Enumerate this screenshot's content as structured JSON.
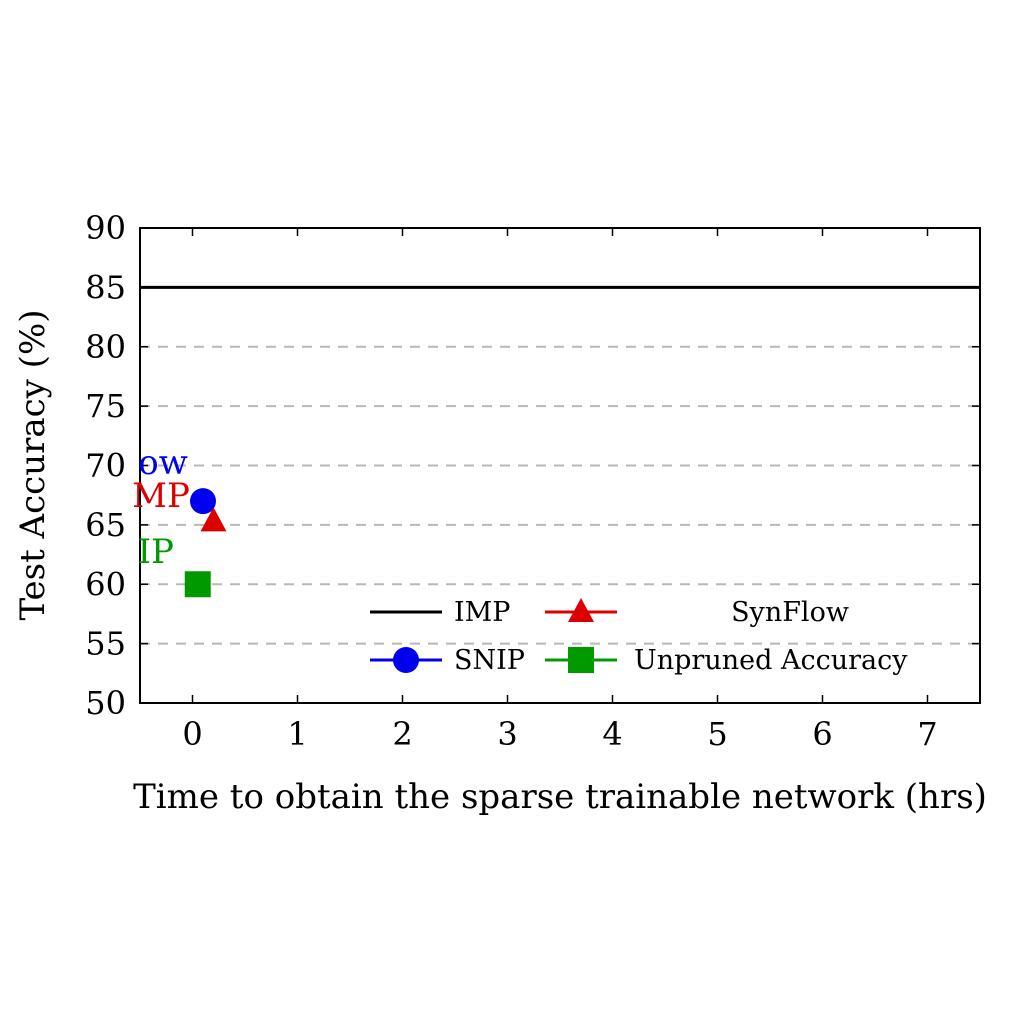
{
  "chart_data": {
    "type": "scatter",
    "xlabel": "Time to obtain the sparse trainable network (hrs)",
    "ylabel": "Test Accuracy (%)",
    "xlim": [
      -0.5,
      7.5
    ],
    "ylim": [
      50,
      90
    ],
    "x_ticks": [
      "0",
      "1",
      "2",
      "3",
      "4",
      "5",
      "6",
      "7"
    ],
    "y_ticks": [
      "50",
      "55",
      "60",
      "65",
      "70",
      "75",
      "80",
      "85",
      "90"
    ],
    "grid": "dashed horizontal",
    "series": [
      {
        "name": "IMP",
        "kind": "hline",
        "y": 85,
        "color": "#000000"
      },
      {
        "name": "SNIP",
        "kind": "point",
        "marker": "circle",
        "x": 0.1,
        "y": 67,
        "color": "#0000ee"
      },
      {
        "name": "SynFlow",
        "kind": "point",
        "marker": "triangle",
        "x": 0.2,
        "y": 65.3,
        "color": "#dd0000"
      },
      {
        "name": "Unpruned Accuracy",
        "kind": "point",
        "marker": "square",
        "x": 0.05,
        "y": 60,
        "color": "#009900"
      }
    ],
    "annotations": [
      {
        "text": "ow",
        "x": -0.28,
        "y": 69.3,
        "color": "#0000ee"
      },
      {
        "text": "MP",
        "x": -0.3,
        "y": 66.5,
        "color": "#dd0000"
      },
      {
        "text": "IP",
        "x": -0.35,
        "y": 61.8,
        "color": "#009900"
      }
    ],
    "legend": {
      "position": "bottom-right",
      "items": [
        "IMP",
        "SynFlow",
        "SNIP",
        "Unpruned Accuracy"
      ]
    }
  }
}
